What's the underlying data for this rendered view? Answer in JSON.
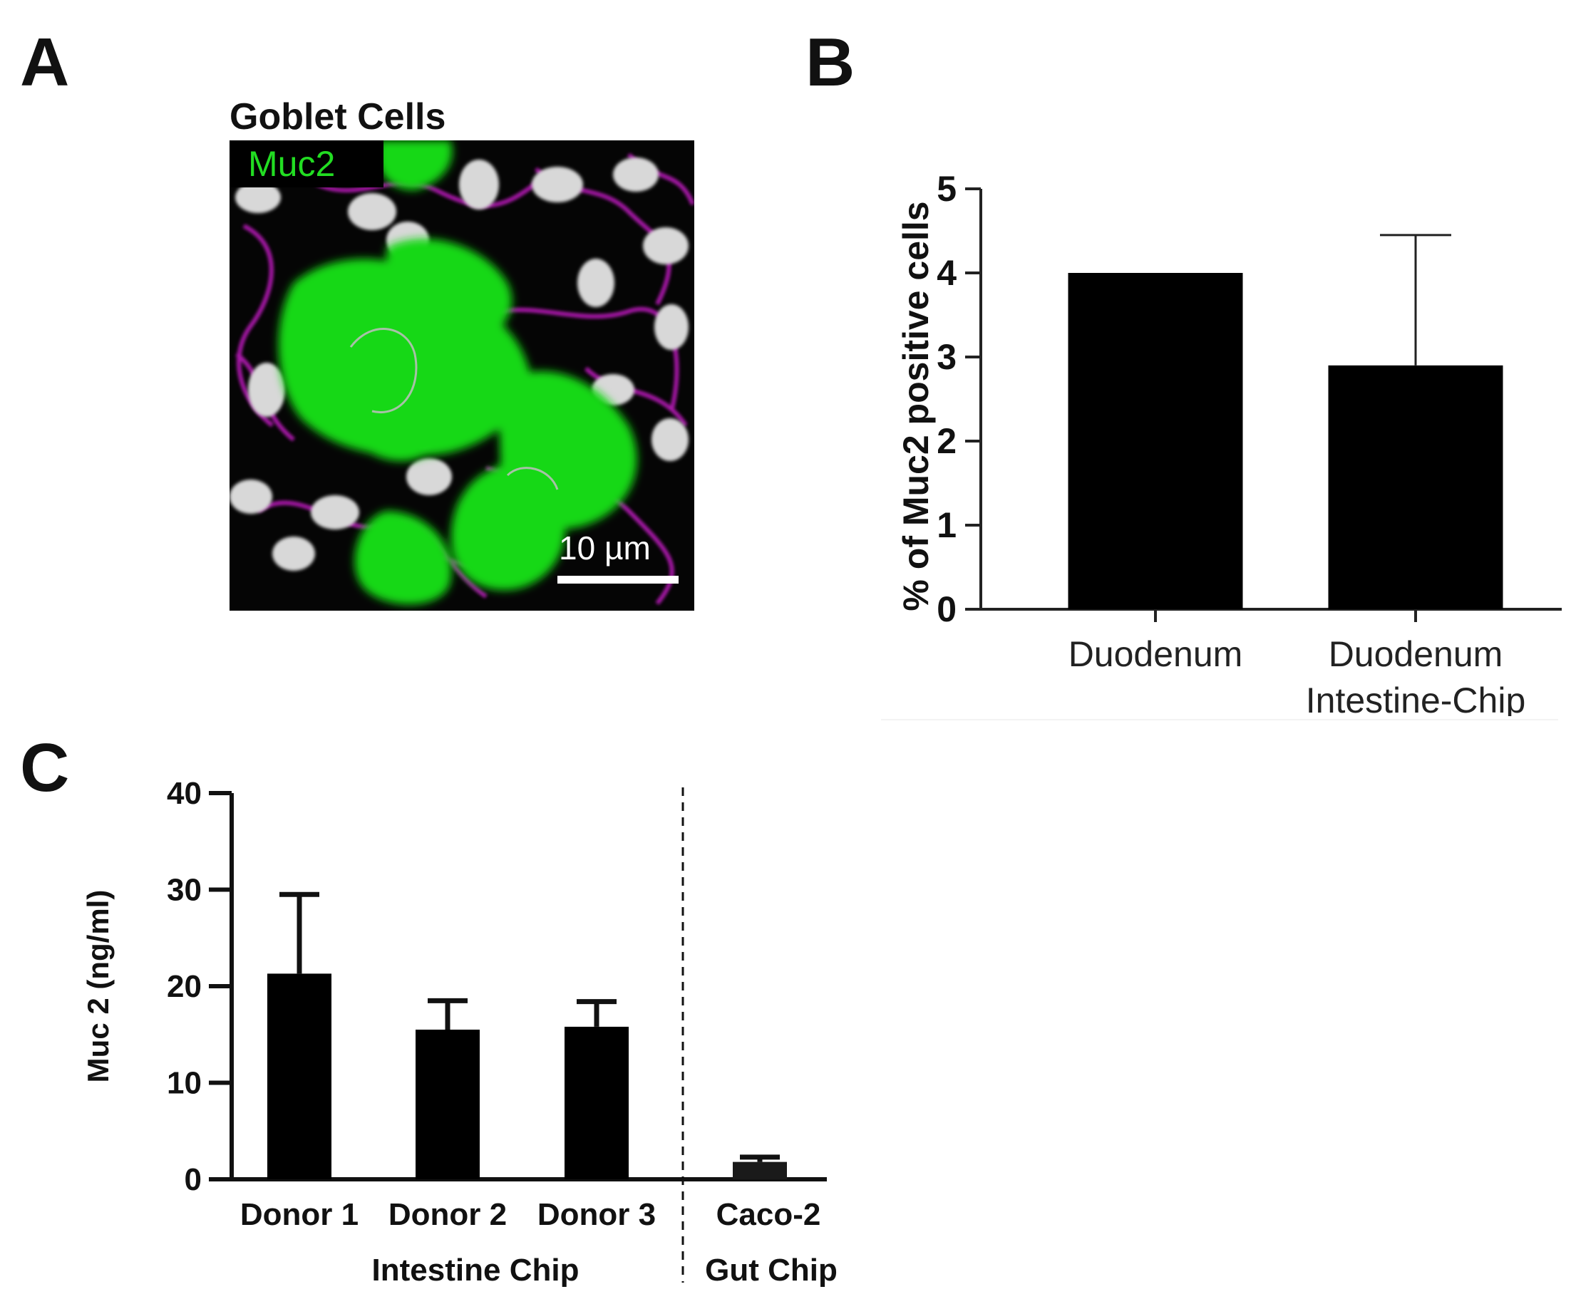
{
  "panels": {
    "a": {
      "letter": "A",
      "title": "Goblet Cells",
      "channel_label": "Muc2",
      "scale_label": "10 µm",
      "colors": {
        "muc2": "#22dd22",
        "membrane": "#d020d0",
        "nuclei": "#d8d8d8"
      }
    },
    "b": {
      "letter": "B"
    },
    "c": {
      "letter": "C"
    }
  },
  "chart_data": [
    {
      "type": "bar",
      "panel": "B",
      "ylabel": "% of Muc2 positive cells",
      "xlabel": "",
      "ylim": [
        0,
        5
      ],
      "yticks": [
        "0",
        "1",
        "2",
        "3",
        "4",
        "5"
      ],
      "categories": [
        "Duodenum",
        "Duodenum\nIntestine-Chip"
      ],
      "category_lines": [
        [
          "Duodenum"
        ],
        [
          "Duodenum",
          "Intestine-Chip"
        ]
      ],
      "values": [
        4.0,
        2.9
      ],
      "error_upper": [
        0,
        1.55
      ],
      "bar_color": "#000000"
    },
    {
      "type": "bar",
      "panel": "C",
      "ylabel": "Muc 2 (ng/ml)",
      "xlabel": "",
      "ylim": [
        0,
        40
      ],
      "yticks": [
        "0",
        "10",
        "20",
        "30",
        "40"
      ],
      "categories": [
        "Donor 1",
        "Donor 2",
        "Donor 3",
        "Caco-2"
      ],
      "values": [
        21.3,
        15.5,
        15.8,
        1.8
      ],
      "error_upper": [
        8.2,
        3.0,
        2.6,
        0.5
      ],
      "group_labels": [
        "Intestine Chip",
        "Gut Chip"
      ],
      "bar_color": "#000000"
    }
  ]
}
